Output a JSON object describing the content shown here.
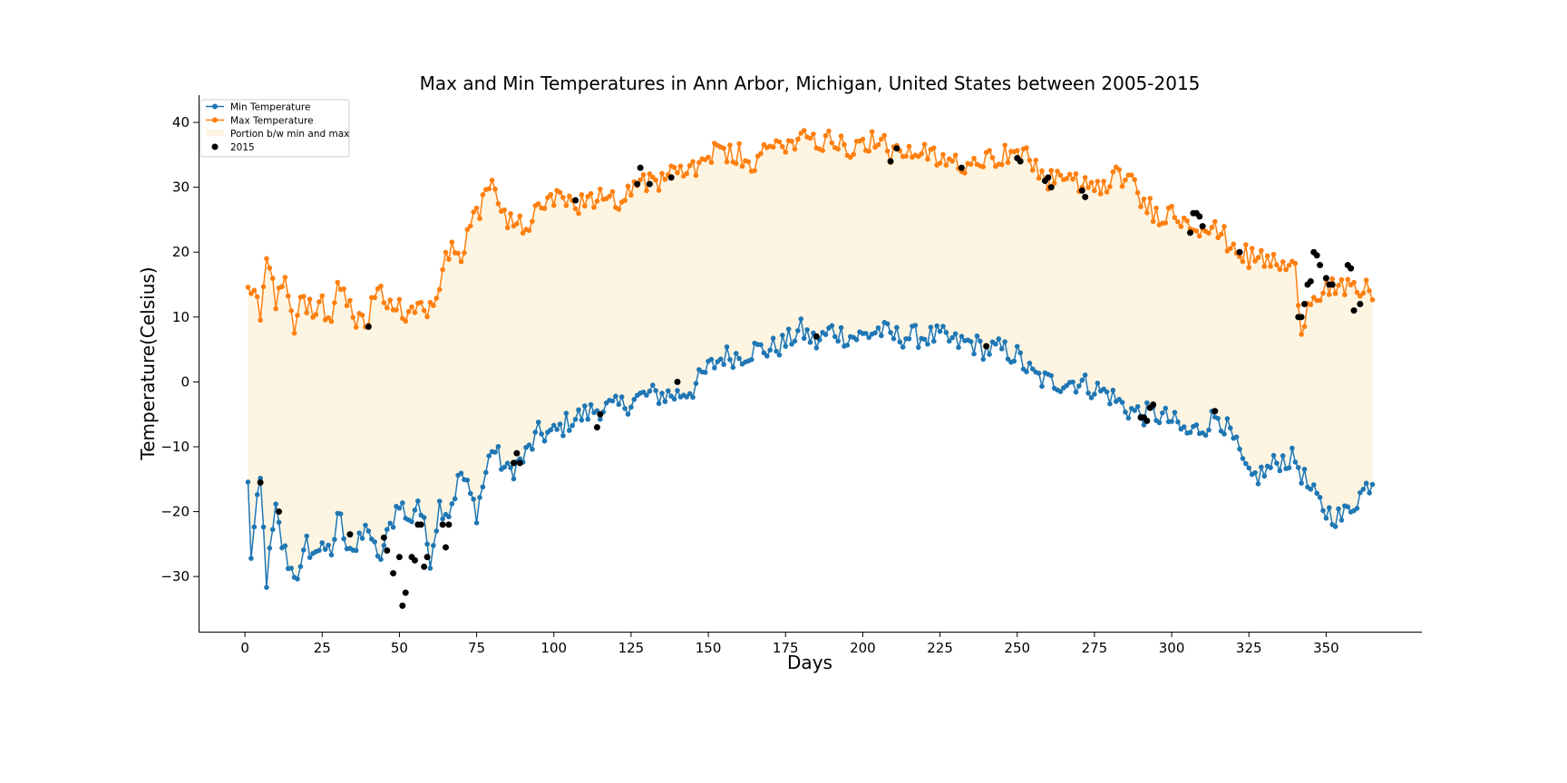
{
  "chart_data": {
    "type": "line",
    "title": "Max and Min Temperatures in Ann Arbor, Michigan, United States between 2005-2015",
    "xlabel": "Days",
    "ylabel": "Temperature(Celsius)",
    "xlim": [
      -15,
      381
    ],
    "ylim": [
      -38.5,
      44.2
    ],
    "xticks": [
      0,
      25,
      50,
      75,
      100,
      125,
      150,
      175,
      200,
      225,
      250,
      275,
      300,
      325,
      350
    ],
    "yticks": [
      -30,
      -20,
      -10,
      0,
      10,
      20,
      30,
      40
    ],
    "grid": false,
    "legend_position": "top-left",
    "fill_label": "Portion b/w min and max",
    "fill_color": "#fdf5e2",
    "min_anchor_days": [
      1,
      2,
      5,
      7,
      10,
      12,
      15,
      18,
      20,
      23,
      25,
      28,
      30,
      33,
      36,
      40,
      43,
      46,
      50,
      53,
      56,
      60,
      63,
      66,
      70,
      75,
      80,
      85,
      90,
      95,
      100,
      105,
      110,
      115,
      120,
      125,
      130,
      135,
      140,
      145,
      150,
      155,
      160,
      165,
      170,
      175,
      180,
      185,
      190,
      195,
      200,
      205,
      210,
      215,
      220,
      225,
      230,
      235,
      240,
      245,
      250,
      255,
      260,
      265,
      270,
      275,
      280,
      285,
      290,
      295,
      300,
      305,
      310,
      315,
      320,
      325,
      330,
      335,
      340,
      345,
      350,
      355,
      360,
      365
    ],
    "min_anchor_vals": [
      -16,
      -26.5,
      -15.5,
      -30.5,
      -20,
      -25,
      -29,
      -29.5,
      -25,
      -27,
      -24,
      -28,
      -20,
      -24.5,
      -26,
      -22,
      -28,
      -24,
      -18,
      -22,
      -18,
      -27,
      -19,
      -20,
      -14,
      -20,
      -10,
      -14,
      -12,
      -8,
      -8,
      -6,
      -5,
      -4,
      -4,
      -3,
      -2,
      -2,
      -2,
      -1,
      2,
      4,
      4,
      5,
      5,
      6,
      8,
      6,
      8,
      7,
      7,
      8,
      7,
      7,
      7,
      7,
      6,
      6,
      5,
      5,
      4,
      1,
      0,
      0,
      0,
      -1,
      -2,
      -4,
      -5,
      -5,
      -6,
      -8,
      -7,
      -5,
      -9,
      -15,
      -14,
      -12,
      -12,
      -17,
      -20,
      -21,
      -18,
      -15
    ],
    "max_anchor_days": [
      1,
      3,
      5,
      7,
      10,
      13,
      16,
      18,
      20,
      23,
      25,
      28,
      30,
      33,
      36,
      40,
      43,
      46,
      50,
      53,
      56,
      60,
      63,
      66,
      70,
      75,
      80,
      85,
      90,
      95,
      100,
      105,
      110,
      115,
      120,
      125,
      130,
      135,
      140,
      145,
      150,
      155,
      160,
      165,
      170,
      175,
      180,
      185,
      190,
      195,
      200,
      205,
      210,
      215,
      220,
      225,
      230,
      235,
      240,
      245,
      250,
      255,
      260,
      265,
      270,
      275,
      280,
      285,
      290,
      295,
      300,
      305,
      310,
      315,
      320,
      325,
      330,
      335,
      340,
      342,
      345,
      350,
      355,
      360,
      365
    ],
    "max_anchor_vals": [
      15.5,
      13,
      11,
      20,
      13,
      16,
      8,
      12,
      12,
      11,
      12,
      9,
      16,
      12,
      10,
      10,
      15,
      12,
      11,
      10,
      11,
      12,
      16,
      20,
      20,
      26,
      30,
      25,
      24,
      26,
      28,
      27,
      28,
      29,
      28,
      30,
      31,
      31,
      32,
      33,
      35,
      35,
      35,
      33,
      36,
      37,
      38,
      37,
      38,
      36,
      37,
      37,
      35,
      35,
      35,
      34,
      34,
      34,
      35,
      35,
      35,
      34,
      31,
      32,
      30,
      30,
      31,
      32,
      28,
      26,
      26,
      25,
      24,
      23,
      21,
      19,
      19,
      18,
      17,
      9,
      13,
      15,
      14,
      14,
      14
    ],
    "record_2015_x": [
      5,
      11,
      34,
      40,
      45,
      46,
      48,
      50,
      51,
      52,
      54,
      55,
      56,
      57,
      58,
      59,
      64,
      65,
      66,
      87,
      88,
      89,
      107,
      114,
      115,
      127,
      128,
      131,
      138,
      140,
      185,
      209,
      211,
      232,
      240,
      250,
      251,
      259,
      260,
      261,
      271,
      272,
      290,
      291,
      292,
      293,
      294,
      306,
      307,
      308,
      309,
      310,
      314,
      322,
      341,
      342,
      343,
      344,
      345,
      346,
      347,
      348,
      350,
      351,
      352,
      357,
      358,
      359,
      361
    ],
    "record_2015_y": [
      -15.5,
      -20,
      -23.5,
      8.5,
      -24,
      -26,
      -29.5,
      -27,
      -34.5,
      -32.5,
      -27,
      -27.5,
      -22,
      -22,
      -28.5,
      -27,
      -22,
      -25.5,
      -22,
      -12.5,
      -11,
      -12.5,
      28,
      -7,
      -5,
      30.5,
      33,
      30.5,
      31.5,
      0,
      7,
      34,
      36,
      33,
      5.5,
      34.5,
      34,
      31,
      31.5,
      30,
      29.5,
      28.5,
      -5.5,
      -5.5,
      -6,
      -4,
      -3.5,
      23,
      26,
      26,
      25.5,
      24,
      -4.5,
      20,
      10,
      10,
      12,
      15,
      15.5,
      20,
      19.5,
      18,
      16,
      15,
      15,
      18,
      17.5,
      11,
      12
    ],
    "series": [
      {
        "name": "Min Temperature",
        "color": "#1f77b4"
      },
      {
        "name": "Max Temperature",
        "color": "#ff7f0e"
      }
    ],
    "record_label": "2015",
    "record_color": "#000000"
  }
}
